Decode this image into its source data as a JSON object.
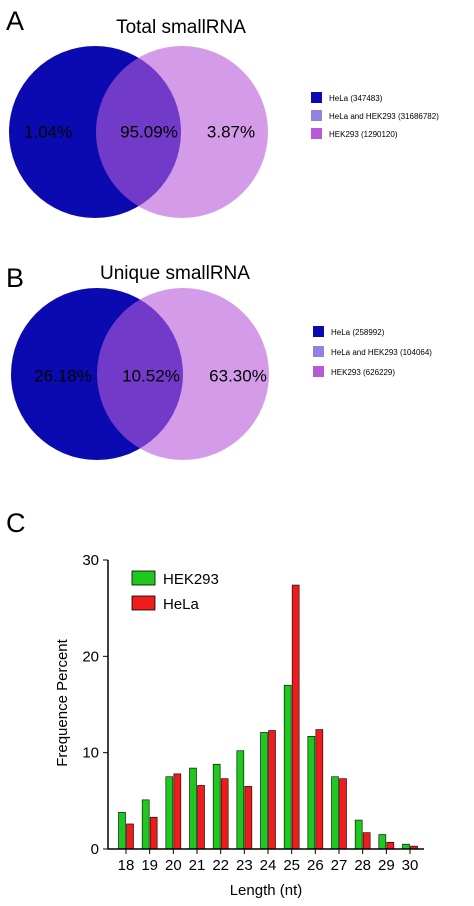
{
  "panels": {
    "a": {
      "letter": "A",
      "title": "Total smallRNA",
      "legend": [
        {
          "label": "HeLa (347483)",
          "color": "#0a0ab0"
        },
        {
          "label": "HeLa and HEK293 (31686782)",
          "color": "#9480e0"
        },
        {
          "label": "HEK293 (1290120)",
          "color": "#b85ad8"
        }
      ]
    },
    "b": {
      "letter": "B",
      "title": "Unique smallRNA",
      "legend": [
        {
          "label": "HeLa (258992)",
          "color": "#0a0ab0"
        },
        {
          "label": "HeLa and HEK293 (104064)",
          "color": "#9480e0"
        },
        {
          "label": "HEK293 (626229)",
          "color": "#b85ad8"
        }
      ]
    },
    "c": {
      "letter": "C"
    }
  },
  "chart_data": [
    {
      "type": "venn",
      "title": "Total smallRNA",
      "sets": [
        "HeLa",
        "HEK293"
      ],
      "regions": [
        {
          "name": "HeLa (347483)",
          "percent_label": "1.04%",
          "value": 347483,
          "color": "#0a0ab0"
        },
        {
          "name": "HeLa and HEK293 (31686782)",
          "percent_label": "95.09%",
          "value": 31686782,
          "color": "#9480e0"
        },
        {
          "name": "HEK293 (1290120)",
          "percent_label": "3.87%",
          "value": 1290120,
          "color": "#b85ad8"
        }
      ]
    },
    {
      "type": "venn",
      "title": "Unique smallRNA",
      "sets": [
        "HeLa",
        "HEK293"
      ],
      "regions": [
        {
          "name": "HeLa (258992)",
          "percent_label": "26.18%",
          "value": 258992,
          "color": "#0a0ab0"
        },
        {
          "name": "HeLa and HEK293 (104064)",
          "percent_label": "10.52%",
          "value": 104064,
          "color": "#9480e0"
        },
        {
          "name": "HEK293 (626229)",
          "percent_label": "63.30%",
          "value": 626229,
          "color": "#b85ad8"
        }
      ]
    },
    {
      "type": "bar",
      "categories": [
        "18",
        "19",
        "20",
        "21",
        "22",
        "23",
        "24",
        "25",
        "26",
        "27",
        "28",
        "29",
        "30"
      ],
      "series": [
        {
          "name": "HEK293",
          "color": "#1ec81e",
          "values": [
            3.8,
            5.1,
            7.5,
            8.4,
            8.8,
            10.2,
            12.1,
            17.0,
            11.7,
            7.5,
            3.0,
            1.5,
            0.5
          ]
        },
        {
          "name": "HeLa",
          "color": "#ee1c1c",
          "values": [
            2.6,
            3.3,
            7.8,
            6.6,
            7.3,
            6.5,
            12.3,
            27.4,
            12.4,
            7.3,
            1.7,
            0.7,
            0.3
          ]
        }
      ],
      "xlabel": "Length (nt)",
      "ylabel": "Frequence Percent",
      "ylim": [
        0,
        30
      ],
      "yticks": [
        "0",
        "10",
        "20",
        "30"
      ],
      "legend_position": "top-left",
      "grid": false
    }
  ]
}
